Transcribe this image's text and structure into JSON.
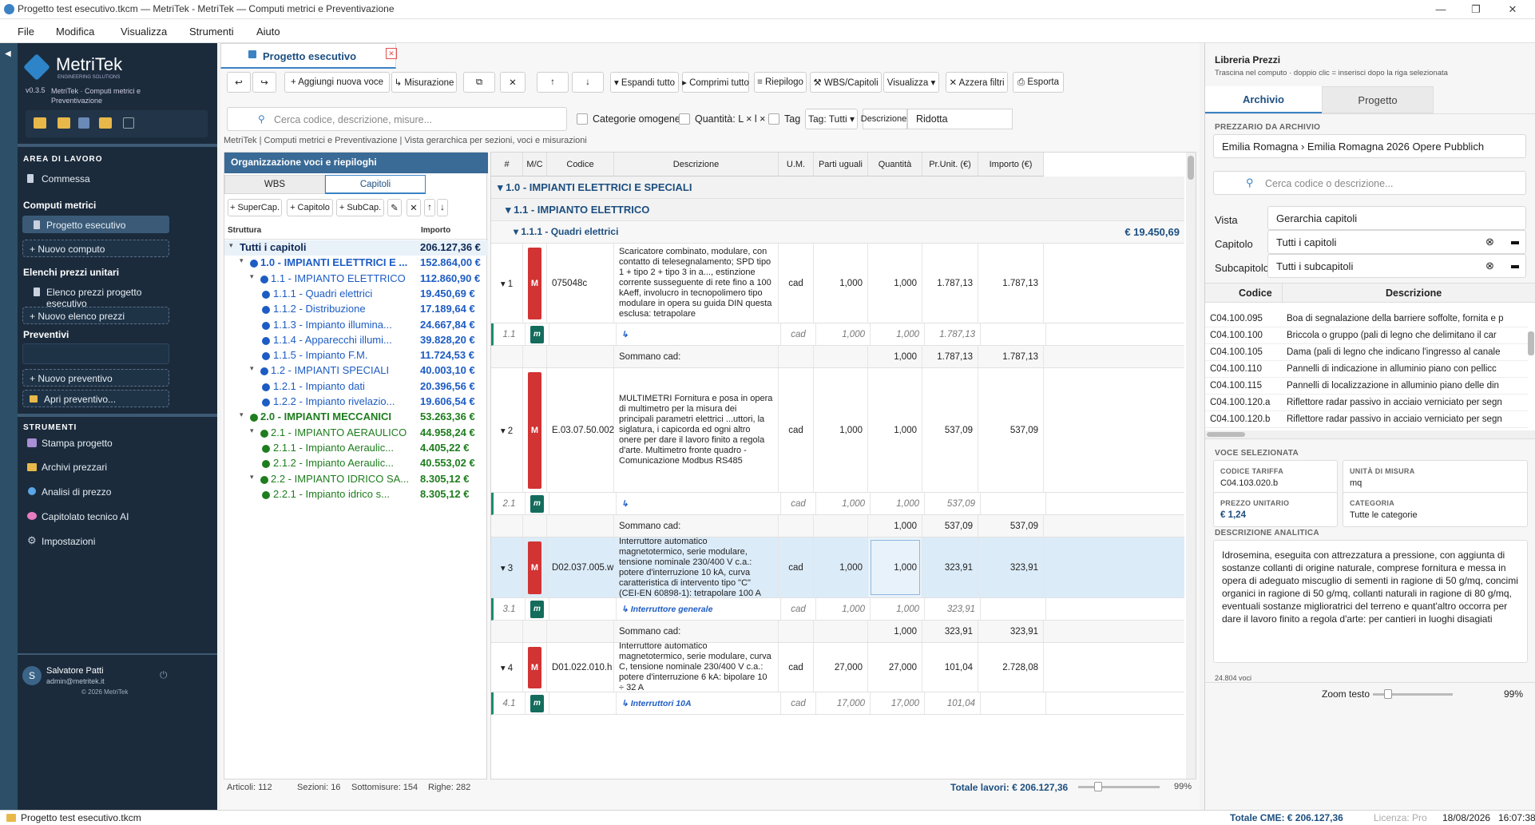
{
  "window": {
    "title": "Progetto test esecutivo.tkcm — MetriTek - MetriTek — Computi metrici e Preventivazione"
  },
  "menu": [
    "File",
    "Modifica",
    "Visualizza",
    "Strumenti",
    "Aiuto"
  ],
  "sidebar": {
    "brand": "MetriTek",
    "brand_sub": "ENGINEERING SOLUTIONS",
    "version": "v0.3.5",
    "version_desc": "MetriTek · Computi metrici e Preventivazione",
    "area_title": "AREA DI LAVORO",
    "commessa": "Commessa",
    "computi_title": "Computi metrici",
    "computo_active": "Progetto esecutivo",
    "nuovo_computo": "+ Nuovo computo",
    "elenchi_title": "Elenchi prezzi unitari",
    "elenco_item": "Elenco prezzi progetto esecutivo",
    "nuovo_elenco": "+ Nuovo elenco prezzi",
    "preventivi_title": "Preventivi",
    "nuovo_preventivo": "+ Nuovo preventivo",
    "apri_preventivo": "Apri preventivo...",
    "strumenti_title": "STRUMENTI",
    "tools": [
      "Stampa progetto",
      "Archivi prezzari",
      "Analisi di prezzo",
      "Capitolato tecnico AI",
      "Impostazioni"
    ],
    "user_initial": "S",
    "user_name": "Salvatore Patti",
    "user_email": "admin@metritek.it",
    "copyright": "© 2026 MetriTek"
  },
  "doc": {
    "tab_title": "Progetto esecutivo",
    "toolbar": {
      "undo": "↩",
      "redo": "↪",
      "add": "+ Aggiungi nuova voce",
      "measure": "↳ Misurazione",
      "copy": "⧉",
      "delete": "✕",
      "up": "↑",
      "down": "↓",
      "expand": "▾ Espandi tutto",
      "collapse": "▸ Comprimi tutto",
      "summary": "≡ Riepilogo",
      "wbs": "⚒ WBS/Capitoli",
      "view": "Visualizza ▾",
      "reset": "✕ Azzera filtri",
      "export": "⎙ Esporta"
    },
    "search_placeholder": "Cerca codice, descrizione, misure...",
    "filters": {
      "cat": "Categorie omogenee",
      "qty": "Quantità: L × l × h",
      "tag": "Tag",
      "tag_select": "Tag: Tutti ▾",
      "desc_label": "Descrizione:",
      "desc_value": "Ridotta"
    },
    "breadcrumb": "MetriTek | Computi metrici e Preventivazione | Vista gerarchica per sezioni, voci e misurazioni",
    "tree": {
      "title": "Organizzazione voci e riepiloghi",
      "tab_wbs": "WBS",
      "tab_cap": "Capitoli",
      "btns": [
        "+ SuperCap.",
        "+ Capitolo",
        "+ SubCap.",
        "✎",
        "✕",
        "↑",
        "↓"
      ],
      "col_struct": "Struttura",
      "col_amount": "Importo",
      "rows": [
        {
          "label": "Tutti i capitoli",
          "amount": "206.127,36 €"
        },
        {
          "label": "1.0 - IMPIANTI ELETTRICI E ...",
          "amount": "152.864,00 €"
        },
        {
          "label": "1.1 - IMPIANTO ELETTRICO",
          "amount": "112.860,90 €"
        },
        {
          "label": "1.1.1 - Quadri elettrici",
          "amount": "19.450,69 €"
        },
        {
          "label": "1.1.2 - Distribuzione",
          "amount": "17.189,64 €"
        },
        {
          "label": "1.1.3 - Impianto illumina...",
          "amount": "24.667,84 €"
        },
        {
          "label": "1.1.4 - Apparecchi illumi...",
          "amount": "39.828,20 €"
        },
        {
          "label": "1.1.5 - Impianto F.M.",
          "amount": "11.724,53 €"
        },
        {
          "label": "1.2 - IMPIANTI SPECIALI",
          "amount": "40.003,10 €"
        },
        {
          "label": "1.2.1 - Impianto dati",
          "amount": "20.396,56 €"
        },
        {
          "label": "1.2.2 - Impianto rivelazio...",
          "amount": "19.606,54 €"
        },
        {
          "label": "2.0 - IMPIANTI MECCANICI",
          "amount": "53.263,36 €"
        },
        {
          "label": "2.1 - IMPIANTO AERAULICO",
          "amount": "44.958,24 €"
        },
        {
          "label": "2.1.1 - Impianto Aeraulic...",
          "amount": "4.405,22 €"
        },
        {
          "label": "2.1.2 - Impianto Aeraulic...",
          "amount": "40.553,02 €"
        },
        {
          "label": "2.2 - IMPIANTO IDRICO SA...",
          "amount": "8.305,12 €"
        },
        {
          "label": "2.2.1 - Impianto idrico s...",
          "amount": "8.305,12 €"
        }
      ]
    },
    "grid": {
      "headers": [
        "#",
        "M/C",
        "Codice",
        "Descrizione",
        "U.M.",
        "Parti uguali",
        "Quantità",
        "Pr.Unit. (€)",
        "Importo (€)"
      ],
      "sec1": "▾ 1.0 - IMPIANTI ELETTRICI E SPECIALI",
      "sec2": "▾ 1.1 - IMPIANTO ELETTRICO",
      "sec3": "▾ 1.1.1 - Quadri elettrici",
      "sec3_total": "€ 19.450,69",
      "items": [
        {
          "num": "▾ 1",
          "badge": "M",
          "code": "075048c",
          "desc": "Scaricatore combinato, modulare, con contatto di telesegnalamento; SPD tipo 1 + tipo 2 + tipo 3 in a..., estinzione corrente susseguente di rete fino a 100 kAeff, involucro in tecnopolimero tipo modulare in opera su guida DIN questa esclusa: tetrapolare",
          "um": "cad",
          "parti": "1,000",
          "qty": "1,000",
          "pu": "1.787,13",
          "imp": "1.787,13",
          "m_num": "1.1",
          "m_badge": "m",
          "m_desc": "↳",
          "m_um": "cad",
          "m_parti": "1,000",
          "m_qty": "1,000",
          "m_pu": "1.787,13",
          "s_label": "Sommano cad:",
          "s_qty": "1,000",
          "s_pu": "1.787,13",
          "s_imp": "1.787,13"
        },
        {
          "num": "▾ 2",
          "badge": "M",
          "code": "E.03.07.50.002",
          "desc": "MULTIMETRI Fornitura e posa in opera di multimetro per la misura dei principali parametri elettrici ...uttori, la siglatura, i capicorda ed ogni altro onere per dare il lavoro finito a regola d'arte. Multimetro fronte quadro - Comunicazione Modbus RS485",
          "um": "cad",
          "parti": "1,000",
          "qty": "1,000",
          "pu": "537,09",
          "imp": "537,09",
          "m_num": "2.1",
          "m_badge": "m",
          "m_desc": "↳",
          "m_um": "cad",
          "m_parti": "1,000",
          "m_qty": "1,000",
          "m_pu": "537,09",
          "s_label": "Sommano cad:",
          "s_qty": "1,000",
          "s_pu": "537,09",
          "s_imp": "537,09"
        },
        {
          "num": "▾ 3",
          "badge": "M",
          "code": "D02.037.005.w",
          "desc": "Interruttore automatico magnetotermico, serie modulare, tensione nominale 230/400 V c.a.: potere d'interruzione 10 kA, curva caratteristica di intervento tipo \"C\" (CEI-EN 60898-1): tetrapolare 100 A",
          "um": "cad",
          "parti": "1,000",
          "qty": "1,000",
          "pu": "323,91",
          "imp": "323,91",
          "m_num": "3.1",
          "m_badge": "m",
          "m_desc": "↳ Interruttore generale",
          "m_um": "cad",
          "m_parti": "1,000",
          "m_qty": "1,000",
          "m_pu": "323,91",
          "s_label": "Sommano cad:",
          "s_qty": "1,000",
          "s_pu": "323,91",
          "s_imp": "323,91"
        },
        {
          "num": "▾ 4",
          "badge": "M",
          "code": "D01.022.010.h",
          "desc": "Interruttore automatico magnetotermico, serie modulare, curva C, tensione nominale 230/400 V c.a.: potere d'interruzione 6 kA: bipolare 10 ÷ 32 A",
          "um": "cad",
          "parti": "27,000",
          "qty": "27,000",
          "pu": "101,04",
          "imp": "2.728,08",
          "m_num": "4.1",
          "m_badge": "m",
          "m_desc": "↳ Interruttori 10A",
          "m_um": "cad",
          "m_parti": "17,000",
          "m_qty": "17,000",
          "m_pu": "101,04"
        }
      ]
    },
    "status": {
      "articoli": "Articoli: 112",
      "sezioni": "Sezioni: 16",
      "sottomisure": "Sottomisure: 154",
      "righe": "Righe: 282",
      "totale": "Totale lavori: € 206.127,36",
      "zoom": "99%"
    }
  },
  "library": {
    "title": "Libreria Prezzi",
    "subtitle": "Trascina nel computo · doppio clic = inserisci dopo la riga selezionata",
    "tab_archive": "Archivio",
    "tab_project": "Progetto",
    "price_label": "PREZZARIO DA ARCHIVIO",
    "price_value": "Emilia Romagna › Emilia Romagna 2026 Opere Pubblich",
    "search_placeholder": "Cerca codice o descrizione...",
    "vista_label": "Vista",
    "vista_value": "Gerarchia capitoli",
    "cap_label": "Capitolo",
    "cap_value": "Tutti i capitoli",
    "subcap_label": "Subcapitolo",
    "subcap_value": "Tutti i subcapitoli",
    "col_code": "Codice",
    "col_desc": "Descrizione",
    "rows": [
      {
        "code": "C04.100.095",
        "desc": "Boa di segnalazione della barriere soffolte, fornita e p"
      },
      {
        "code": "C04.100.100",
        "desc": "Briccola o gruppo (pali di legno che delimitano il car"
      },
      {
        "code": "C04.100.105",
        "desc": "Dama (pali di legno che indicano l'ingresso al canale"
      },
      {
        "code": "C04.100.110",
        "desc": "Pannelli di indicazione in alluminio piano con pellicc"
      },
      {
        "code": "C04.100.115",
        "desc": "Pannelli di localizzazione in alluminio piano delle din"
      },
      {
        "code": "C04.100.120.a",
        "desc": "Riflettore radar passivo in acciaio verniciato per segn"
      },
      {
        "code": "C04.100.120.b",
        "desc": "Riflettore radar passivo in acciaio verniciato per segn"
      }
    ],
    "sel_title": "VOCE SELEZIONATA",
    "code_label": "CODICE TARIFFA",
    "code_value": "C04.103.020.b",
    "unit_label": "UNITÀ DI MISURA",
    "unit_value": "mq",
    "price_unit_label": "PREZZO UNITARIO",
    "price_unit_value": "€ 1,24",
    "cat_label": "CATEGORIA",
    "cat_value": "Tutte le categorie",
    "desc_label": "DESCRIZIONE ANALITICA",
    "desc_value": "Idrosemina, eseguita con attrezzatura a pressione, con aggiunta di sostanze collanti di origine naturale, comprese fornitura e messa in opera di adeguato miscuglio di sementi in ragione di 50 g/mq, concimi organici in ragione di 50 g/mq, collanti naturali in ragione di 80 g/mq, eventuali sostanze miglioratrici del terreno e quant'altro occorra per dare il lavoro finito a regola d'arte: per cantieri in luoghi disagiati",
    "count": "24.804 voci",
    "zoom_label": "Zoom testo",
    "zoom_value": "99%"
  },
  "statusbar": {
    "file": "Progetto test esecutivo.tkcm",
    "total": "Totale CME: € 206.127,36",
    "license": "Licenza: Pro",
    "date": "18/08/2026",
    "time": "16:07:38"
  }
}
